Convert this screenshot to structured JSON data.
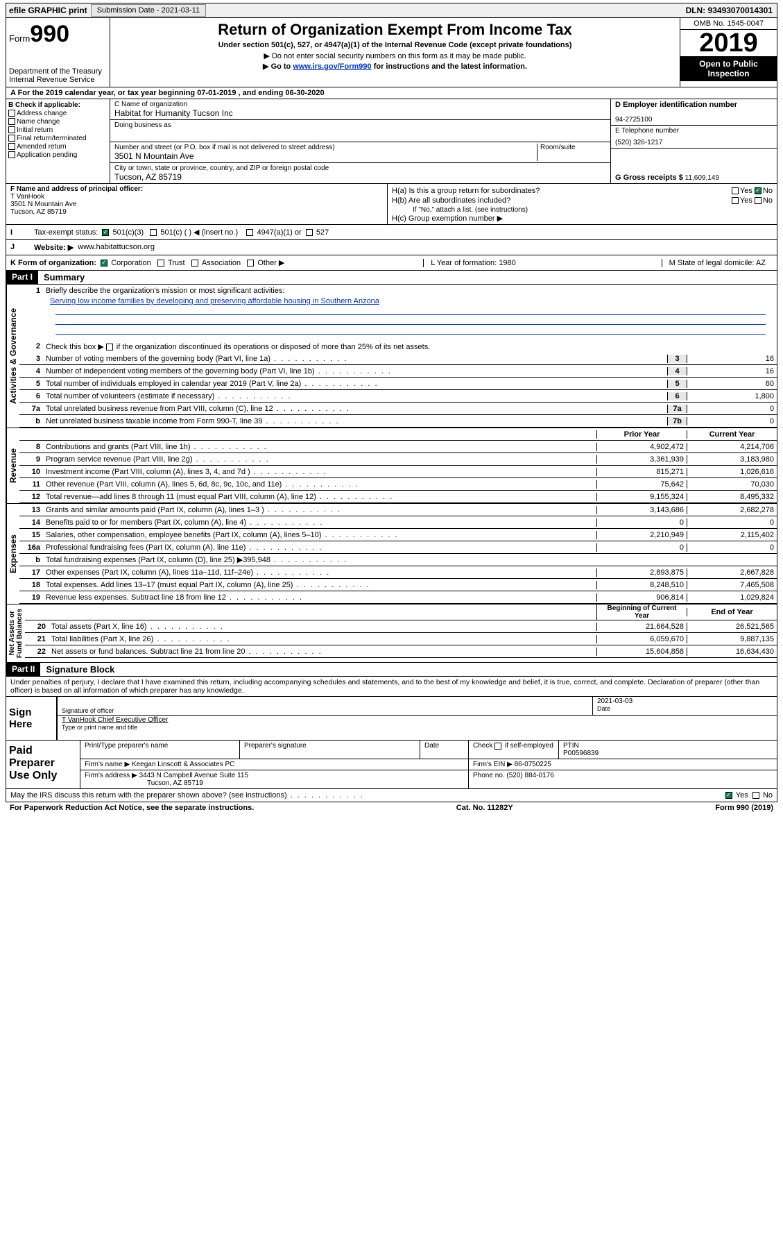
{
  "topBar": {
    "efile": "efile GRAPHIC print",
    "submissionLabel": "Submission Date - 2021-03-11",
    "dln": "DLN: 93493070014301"
  },
  "header": {
    "form": "Form",
    "formNum": "990",
    "dept": "Department of the Treasury\nInternal Revenue Service",
    "title": "Return of Organization Exempt From Income Tax",
    "sub1": "Under section 501(c), 527, or 4947(a)(1) of the Internal Revenue Code (except private foundations)",
    "sub2": "▶ Do not enter social security numbers on this form as it may be made public.",
    "sub3a": "▶ Go to ",
    "sub3link": "www.irs.gov/Form990",
    "sub3b": " for instructions and the latest information.",
    "omb": "OMB No. 1545-0047",
    "year": "2019",
    "openPublic": "Open to Public Inspection"
  },
  "lineA": "A   For the 2019 calendar year, or tax year beginning 07-01-2019    , and ending 06-30-2020",
  "blockB": {
    "label": "B Check if applicable:",
    "addressChange": "Address change",
    "nameChange": "Name change",
    "initialReturn": "Initial return",
    "finalReturn": "Final return/terminated",
    "amendedReturn": "Amended return",
    "appPending": "Application pending"
  },
  "blockC": {
    "nameLabel": "C Name of organization",
    "name": "Habitat for Humanity Tucson Inc",
    "dbaLabel": "Doing business as",
    "streetLabel": "Number and street (or P.O. box if mail is not delivered to street address)",
    "roomLabel": "Room/suite",
    "street": "3501 N Mountain Ave",
    "cityLabel": "City or town, state or province, country, and ZIP or foreign postal code",
    "city": "Tucson, AZ  85719"
  },
  "blockD": {
    "label": "D Employer identification number",
    "value": "94-2725100"
  },
  "blockE": {
    "label": "E Telephone number",
    "value": "(520) 326-1217"
  },
  "blockG": {
    "label": "G Gross receipts $",
    "value": "11,609,149"
  },
  "blockF": {
    "label": "F  Name and address of principal officer:",
    "name": "T VanHook",
    "street": "3501 N Mountain Ave",
    "city": "Tucson, AZ  85719"
  },
  "blockH": {
    "ha": "H(a)  Is this a group return for subordinates?",
    "hb": "H(b)  Are all subordinates included?",
    "hbNote": "If \"No,\" attach a list. (see instructions)",
    "hc": "H(c)  Group exemption number ▶",
    "yes": "Yes",
    "no": "No"
  },
  "taxExempt": {
    "label": "Tax-exempt status:",
    "c3": "501(c)(3)",
    "c": "501(c) (   ) ◀ (insert no.)",
    "a1": "4947(a)(1) or",
    "s527": "527"
  },
  "website": {
    "label": "Website: ▶",
    "value": "www.habitattucson.org"
  },
  "korg": {
    "label": "K Form of organization:",
    "corp": "Corporation",
    "trust": "Trust",
    "assoc": "Association",
    "other": "Other ▶",
    "lyear": "L Year of formation: 1980",
    "mstate": "M State of legal domicile: AZ"
  },
  "partI": {
    "tag": "Part I",
    "title": "Summary"
  },
  "summary": {
    "line1": "Briefly describe the organization's mission or most significant activities:",
    "mission": "Serving low income families by developing and preserving affordable housing in Southern Arizona",
    "line2": "Check this box ▶        if the organization discontinued its operations or disposed of more than 25% of its net assets.",
    "lines": [
      {
        "n": "3",
        "t": "Number of voting members of the governing body (Part VI, line 1a)",
        "box": "3",
        "v": "16"
      },
      {
        "n": "4",
        "t": "Number of independent voting members of the governing body (Part VI, line 1b)",
        "box": "4",
        "v": "16"
      },
      {
        "n": "5",
        "t": "Total number of individuals employed in calendar year 2019 (Part V, line 2a)",
        "box": "5",
        "v": "60"
      },
      {
        "n": "6",
        "t": "Total number of volunteers (estimate if necessary)",
        "box": "6",
        "v": "1,800"
      },
      {
        "n": "7a",
        "t": "Total unrelated business revenue from Part VIII, column (C), line 12",
        "box": "7a",
        "v": "0"
      },
      {
        "n": "b",
        "t": "Net unrelated business taxable income from Form 990-T, line 39",
        "box": "7b",
        "v": "0"
      }
    ],
    "colHead1": "Prior Year",
    "colHead2": "Current Year",
    "revenue": [
      {
        "n": "8",
        "t": "Contributions and grants (Part VIII, line 1h)",
        "p": "4,902,472",
        "c": "4,214,706"
      },
      {
        "n": "9",
        "t": "Program service revenue (Part VIII, line 2g)",
        "p": "3,361,939",
        "c": "3,183,980"
      },
      {
        "n": "10",
        "t": "Investment income (Part VIII, column (A), lines 3, 4, and 7d )",
        "p": "815,271",
        "c": "1,026,616"
      },
      {
        "n": "11",
        "t": "Other revenue (Part VIII, column (A), lines 5, 6d, 8c, 9c, 10c, and 11e)",
        "p": "75,642",
        "c": "70,030"
      },
      {
        "n": "12",
        "t": "Total revenue—add lines 8 through 11 (must equal Part VIII, column (A), line 12)",
        "p": "9,155,324",
        "c": "8,495,332"
      }
    ],
    "expenses": [
      {
        "n": "13",
        "t": "Grants and similar amounts paid (Part IX, column (A), lines 1–3 )",
        "p": "3,143,686",
        "c": "2,682,278"
      },
      {
        "n": "14",
        "t": "Benefits paid to or for members (Part IX, column (A), line 4)",
        "p": "0",
        "c": "0"
      },
      {
        "n": "15",
        "t": "Salaries, other compensation, employee benefits (Part IX, column (A), lines 5–10)",
        "p": "2,210,949",
        "c": "2,115,402"
      },
      {
        "n": "16a",
        "t": "Professional fundraising fees (Part IX, column (A), line 11e)",
        "p": "0",
        "c": "0"
      },
      {
        "n": "b",
        "t": "Total fundraising expenses (Part IX, column (D), line 25) ▶395,948",
        "p": "",
        "c": "",
        "shaded": true
      },
      {
        "n": "17",
        "t": "Other expenses (Part IX, column (A), lines 11a–11d, 11f–24e)",
        "p": "2,893,875",
        "c": "2,667,828"
      },
      {
        "n": "18",
        "t": "Total expenses. Add lines 13–17 (must equal Part IX, column (A), line 25)",
        "p": "8,248,510",
        "c": "7,465,508"
      },
      {
        "n": "19",
        "t": "Revenue less expenses. Subtract line 18 from line 12",
        "p": "906,814",
        "c": "1,029,824"
      }
    ],
    "colHead3": "Beginning of Current Year",
    "colHead4": "End of Year",
    "netassets": [
      {
        "n": "20",
        "t": "Total assets (Part X, line 16)",
        "p": "21,664,528",
        "c": "26,521,565"
      },
      {
        "n": "21",
        "t": "Total liabilities (Part X, line 26)",
        "p": "6,059,670",
        "c": "9,887,135"
      },
      {
        "n": "22",
        "t": "Net assets or fund balances. Subtract line 21 from line 20",
        "p": "15,604,858",
        "c": "16,634,430"
      }
    ],
    "vertLabels": {
      "gov": "Activities & Governance",
      "rev": "Revenue",
      "exp": "Expenses",
      "net": "Net Assets or\nFund Balances"
    }
  },
  "partII": {
    "tag": "Part II",
    "title": "Signature Block"
  },
  "perjury": "Under penalties of perjury, I declare that I have examined this return, including accompanying schedules and statements, and to the best of my knowledge and belief, it is true, correct, and complete. Declaration of preparer (other than officer) is based on all information of which preparer has any knowledge.",
  "sign": {
    "label": "Sign Here",
    "sigOfficer": "Signature of officer",
    "date": "2021-03-03",
    "dateLabel": "Date",
    "name": "T VanHook  Chief Executive Officer",
    "typeName": "Type or print name and title"
  },
  "preparer": {
    "label": "Paid Preparer Use Only",
    "printName": "Print/Type preparer's name",
    "prepSig": "Preparer's signature",
    "dateLabel": "Date",
    "checkSelf": "Check        if self-employed",
    "ptinLabel": "PTIN",
    "ptin": "P00596839",
    "firmLabel": "Firm's name     ▶",
    "firmName": "Keegan Linscott & Associates PC",
    "einLabel": "Firm's EIN ▶",
    "ein": "86-0750225",
    "addrLabel": "Firm's address ▶",
    "addr": "3443 N Campbell Avenue Suite 115",
    "addr2": "Tucson, AZ  85719",
    "phoneLabel": "Phone no.",
    "phone": "(520) 884-0176"
  },
  "discuss": {
    "text": "May the IRS discuss this return with the preparer shown above? (see instructions)",
    "yes": "Yes",
    "no": "No"
  },
  "footer": {
    "paperwork": "For Paperwork Reduction Act Notice, see the separate instructions.",
    "cat": "Cat. No. 11282Y",
    "form": "Form 990 (2019)"
  }
}
